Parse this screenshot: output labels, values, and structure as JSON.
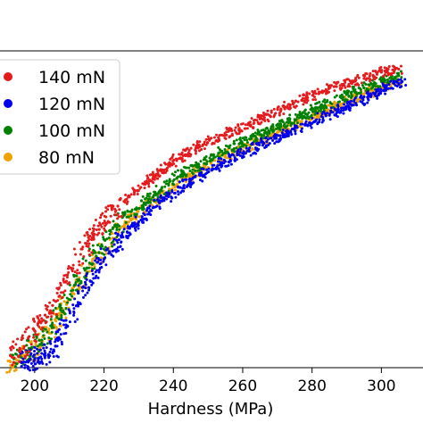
{
  "chart_data": {
    "type": "scatter",
    "title": "",
    "xlabel": "Hardness (MPa)",
    "ylabel": "",
    "xlim": [
      190,
      312
    ],
    "ylim": [
      0,
      1
    ],
    "x_ticks": [
      200,
      220,
      240,
      260,
      280,
      300
    ],
    "grid": false,
    "legend_position": "upper-left",
    "series": [
      {
        "name": "140 mN",
        "color": "#e41a1c",
        "points": [
          [
            193,
            0.03
          ],
          [
            197,
            0.06
          ],
          [
            200,
            0.11
          ],
          [
            203,
            0.16
          ],
          [
            207,
            0.22
          ],
          [
            211,
            0.31
          ],
          [
            215,
            0.39
          ],
          [
            219,
            0.45
          ],
          [
            224,
            0.51
          ],
          [
            229,
            0.56
          ],
          [
            235,
            0.61
          ],
          [
            241,
            0.66
          ],
          [
            247,
            0.7
          ],
          [
            253,
            0.73
          ],
          [
            259,
            0.76
          ],
          [
            265,
            0.79
          ],
          [
            271,
            0.82
          ],
          [
            277,
            0.85
          ],
          [
            283,
            0.88
          ],
          [
            289,
            0.9
          ],
          [
            295,
            0.92
          ],
          [
            300,
            0.94
          ],
          [
            305,
            0.95
          ]
        ]
      },
      {
        "name": "120 mN",
        "color": "#0000ee",
        "points": [
          [
            196,
            0.01
          ],
          [
            200,
            0.02
          ],
          [
            203,
            0.03
          ],
          [
            206,
            0.06
          ],
          [
            209,
            0.12
          ],
          [
            212,
            0.19
          ],
          [
            216,
            0.27
          ],
          [
            220,
            0.34
          ],
          [
            225,
            0.41
          ],
          [
            230,
            0.46
          ],
          [
            236,
            0.52
          ],
          [
            242,
            0.57
          ],
          [
            248,
            0.61
          ],
          [
            254,
            0.65
          ],
          [
            260,
            0.68
          ],
          [
            266,
            0.71
          ],
          [
            272,
            0.74
          ],
          [
            278,
            0.77
          ],
          [
            284,
            0.8
          ],
          [
            290,
            0.83
          ],
          [
            296,
            0.86
          ],
          [
            301,
            0.89
          ],
          [
            306,
            0.91
          ]
        ]
      },
      {
        "name": "100 mN",
        "color": "#008000",
        "points": [
          [
            194,
            0.02
          ],
          [
            198,
            0.04
          ],
          [
            202,
            0.08
          ],
          [
            205,
            0.12
          ],
          [
            208,
            0.17
          ],
          [
            211,
            0.24
          ],
          [
            215,
            0.31
          ],
          [
            219,
            0.38
          ],
          [
            224,
            0.45
          ],
          [
            229,
            0.5
          ],
          [
            235,
            0.55
          ],
          [
            241,
            0.6
          ],
          [
            247,
            0.64
          ],
          [
            253,
            0.68
          ],
          [
            259,
            0.71
          ],
          [
            265,
            0.74
          ],
          [
            271,
            0.77
          ],
          [
            277,
            0.8
          ],
          [
            283,
            0.83
          ],
          [
            289,
            0.86
          ],
          [
            295,
            0.89
          ],
          [
            300,
            0.91
          ],
          [
            305,
            0.93
          ]
        ]
      },
      {
        "name": "80 mN",
        "color": "#f0a000",
        "points": [
          [
            193,
            0.01
          ],
          [
            197,
            0.03
          ],
          [
            201,
            0.06
          ],
          [
            204,
            0.11
          ],
          [
            207,
            0.16
          ],
          [
            211,
            0.23
          ],
          [
            215,
            0.3
          ],
          [
            219,
            0.36
          ],
          [
            224,
            0.42
          ],
          [
            229,
            0.48
          ],
          [
            235,
            0.53
          ],
          [
            241,
            0.58
          ],
          [
            247,
            0.62
          ],
          [
            253,
            0.66
          ],
          [
            259,
            0.69
          ],
          [
            265,
            0.72
          ],
          [
            271,
            0.75
          ],
          [
            277,
            0.78
          ],
          [
            283,
            0.81
          ],
          [
            289,
            0.84
          ],
          [
            295,
            0.87
          ],
          [
            300,
            0.89
          ],
          [
            305,
            0.91
          ]
        ]
      }
    ]
  }
}
